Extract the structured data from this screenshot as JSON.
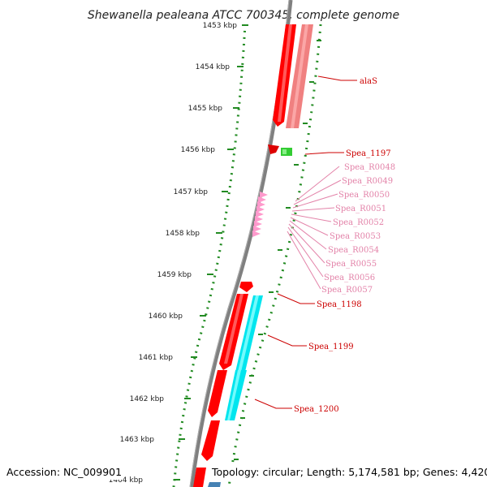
{
  "title": "Shewanella pealeana ATCC 700345, complete genome",
  "footer": {
    "accession": "Accession: NC_009901",
    "topology": "Topology: circular; Length: 5,174,581 bp; Genes: 4,420"
  },
  "ticks": [
    "1453 kbp",
    "1454 kbp",
    "1455 kbp",
    "1456 kbp",
    "1457 kbp",
    "1458 kbp",
    "1459 kbp",
    "1460 kbp",
    "1461 kbp",
    "1462 kbp",
    "1463 kbp",
    "1464 kbp"
  ],
  "colors": {
    "cds_red": "#ff0000",
    "cds_pink": "#f08080",
    "cyan": "#00e5ee",
    "trna_pink": "#ff99cc",
    "green_gene": "#33cc33",
    "tick_green": "#228b22",
    "backbone": "#808080",
    "label_red": "#cc0000",
    "label_pink": "#e383a9",
    "blue": "#4682b4"
  },
  "labels": {
    "red": [
      "alaS",
      "Spea_1197",
      "Spea_1198",
      "Spea_1199",
      "Spea_1200"
    ],
    "pink": [
      "Spea_R0048",
      "Spea_R0049",
      "Spea_R0050",
      "Spea_R0051",
      "Spea_R0052",
      "Spea_R0053",
      "Spea_R0054",
      "Spea_R0055",
      "Spea_R0056",
      "Spea_R0057"
    ]
  }
}
